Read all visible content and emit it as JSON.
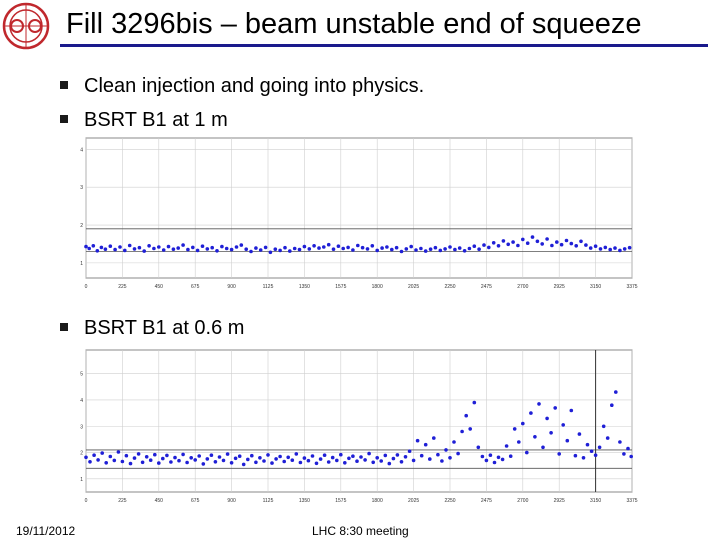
{
  "slide": {
    "title": "Fill 3296bis – beam unstable end of squeeze",
    "bullets": [
      "Clean injection and going into physics.",
      "BSRT B1 at 1 m",
      "BSRT B1 at 0.6 m"
    ],
    "footer_date": "19/11/2012",
    "footer_meeting": "LHC 8:30 meeting"
  },
  "colors": {
    "title_rule": "#1a1a8c",
    "points": "#1f1fd6",
    "logo": "#c0282d"
  },
  "chart_data": [
    {
      "type": "scatter",
      "series_color": "#1f1fd6",
      "xticks": [
        "0",
        "225",
        "450",
        "675",
        "900",
        "1125",
        "1350",
        "1575",
        "1800",
        "2025",
        "2250",
        "2475",
        "2700",
        "2925",
        "3150",
        "3375"
      ],
      "yticks": [
        "1",
        "2",
        "3",
        "4"
      ],
      "xlim": [
        0,
        3375
      ],
      "ylim": [
        0.6,
        4.3
      ],
      "hlines": [
        1.3,
        1.9
      ],
      "vlines": [],
      "points": [
        [
          0,
          1.43
        ],
        [
          20,
          1.38
        ],
        [
          45,
          1.45
        ],
        [
          70,
          1.32
        ],
        [
          95,
          1.41
        ],
        [
          120,
          1.36
        ],
        [
          150,
          1.44
        ],
        [
          180,
          1.35
        ],
        [
          210,
          1.42
        ],
        [
          240,
          1.33
        ],
        [
          270,
          1.46
        ],
        [
          300,
          1.37
        ],
        [
          330,
          1.4
        ],
        [
          360,
          1.31
        ],
        [
          390,
          1.45
        ],
        [
          420,
          1.38
        ],
        [
          450,
          1.42
        ],
        [
          480,
          1.34
        ],
        [
          510,
          1.43
        ],
        [
          540,
          1.36
        ],
        [
          570,
          1.39
        ],
        [
          600,
          1.47
        ],
        [
          630,
          1.35
        ],
        [
          660,
          1.41
        ],
        [
          690,
          1.33
        ],
        [
          720,
          1.44
        ],
        [
          750,
          1.37
        ],
        [
          780,
          1.4
        ],
        [
          810,
          1.32
        ],
        [
          840,
          1.43
        ],
        [
          870,
          1.38
        ],
        [
          900,
          1.35
        ],
        [
          930,
          1.42
        ],
        [
          960,
          1.47
        ],
        [
          990,
          1.36
        ],
        [
          1020,
          1.3
        ],
        [
          1050,
          1.39
        ],
        [
          1080,
          1.34
        ],
        [
          1110,
          1.41
        ],
        [
          1140,
          1.28
        ],
        [
          1170,
          1.36
        ],
        [
          1200,
          1.33
        ],
        [
          1230,
          1.4
        ],
        [
          1260,
          1.31
        ],
        [
          1290,
          1.38
        ],
        [
          1320,
          1.35
        ],
        [
          1350,
          1.43
        ],
        [
          1380,
          1.37
        ],
        [
          1410,
          1.45
        ],
        [
          1440,
          1.39
        ],
        [
          1470,
          1.42
        ],
        [
          1500,
          1.48
        ],
        [
          1530,
          1.36
        ],
        [
          1560,
          1.44
        ],
        [
          1590,
          1.38
        ],
        [
          1620,
          1.41
        ],
        [
          1650,
          1.34
        ],
        [
          1680,
          1.46
        ],
        [
          1710,
          1.4
        ],
        [
          1740,
          1.37
        ],
        [
          1770,
          1.45
        ],
        [
          1800,
          1.33
        ],
        [
          1830,
          1.39
        ],
        [
          1860,
          1.42
        ],
        [
          1890,
          1.35
        ],
        [
          1920,
          1.4
        ],
        [
          1950,
          1.3
        ],
        [
          1980,
          1.37
        ],
        [
          2010,
          1.43
        ],
        [
          2040,
          1.34
        ],
        [
          2070,
          1.38
        ],
        [
          2100,
          1.31
        ],
        [
          2130,
          1.36
        ],
        [
          2160,
          1.4
        ],
        [
          2190,
          1.33
        ],
        [
          2220,
          1.37
        ],
        [
          2250,
          1.42
        ],
        [
          2280,
          1.35
        ],
        [
          2310,
          1.39
        ],
        [
          2340,
          1.32
        ],
        [
          2370,
          1.38
        ],
        [
          2400,
          1.44
        ],
        [
          2430,
          1.36
        ],
        [
          2460,
          1.47
        ],
        [
          2490,
          1.41
        ],
        [
          2520,
          1.53
        ],
        [
          2550,
          1.45
        ],
        [
          2580,
          1.58
        ],
        [
          2610,
          1.49
        ],
        [
          2640,
          1.55
        ],
        [
          2670,
          1.46
        ],
        [
          2700,
          1.62
        ],
        [
          2730,
          1.52
        ],
        [
          2760,
          1.68
        ],
        [
          2790,
          1.57
        ],
        [
          2820,
          1.5
        ],
        [
          2850,
          1.63
        ],
        [
          2880,
          1.46
        ],
        [
          2910,
          1.55
        ],
        [
          2940,
          1.48
        ],
        [
          2970,
          1.59
        ],
        [
          3000,
          1.51
        ],
        [
          3030,
          1.45
        ],
        [
          3060,
          1.57
        ],
        [
          3090,
          1.47
        ],
        [
          3120,
          1.39
        ],
        [
          3150,
          1.44
        ],
        [
          3180,
          1.37
        ],
        [
          3210,
          1.41
        ],
        [
          3240,
          1.35
        ],
        [
          3270,
          1.39
        ],
        [
          3300,
          1.33
        ],
        [
          3330,
          1.37
        ],
        [
          3360,
          1.4
        ]
      ]
    },
    {
      "type": "scatter",
      "series_color": "#1f1fd6",
      "xticks": [
        "0",
        "225",
        "450",
        "675",
        "900",
        "1125",
        "1350",
        "1575",
        "1800",
        "2025",
        "2250",
        "2475",
        "2700",
        "2925",
        "3150",
        "3375"
      ],
      "yticks": [
        "1",
        "2",
        "3",
        "4",
        "5"
      ],
      "xlim": [
        0,
        3375
      ],
      "ylim": [
        0.5,
        5.9
      ],
      "hlines": [
        1.4,
        2.1
      ],
      "vlines": [
        3150
      ],
      "points": [
        [
          0,
          1.82
        ],
        [
          25,
          1.65
        ],
        [
          50,
          1.9
        ],
        [
          75,
          1.72
        ],
        [
          100,
          1.98
        ],
        [
          125,
          1.61
        ],
        [
          150,
          1.85
        ],
        [
          175,
          1.7
        ],
        [
          200,
          2.02
        ],
        [
          225,
          1.66
        ],
        [
          250,
          1.88
        ],
        [
          275,
          1.58
        ],
        [
          300,
          1.79
        ],
        [
          325,
          1.95
        ],
        [
          350,
          1.63
        ],
        [
          375,
          1.84
        ],
        [
          400,
          1.71
        ],
        [
          425,
          1.92
        ],
        [
          450,
          1.6
        ],
        [
          475,
          1.77
        ],
        [
          500,
          1.89
        ],
        [
          525,
          1.64
        ],
        [
          550,
          1.81
        ],
        [
          575,
          1.69
        ],
        [
          600,
          1.93
        ],
        [
          625,
          1.62
        ],
        [
          650,
          1.8
        ],
        [
          675,
          1.72
        ],
        [
          700,
          1.87
        ],
        [
          725,
          1.57
        ],
        [
          750,
          1.76
        ],
        [
          775,
          1.9
        ],
        [
          800,
          1.65
        ],
        [
          825,
          1.83
        ],
        [
          850,
          1.7
        ],
        [
          875,
          1.94
        ],
        [
          900,
          1.61
        ],
        [
          925,
          1.78
        ],
        [
          950,
          1.86
        ],
        [
          975,
          1.55
        ],
        [
          1000,
          1.74
        ],
        [
          1025,
          1.88
        ],
        [
          1050,
          1.63
        ],
        [
          1075,
          1.8
        ],
        [
          1100,
          1.68
        ],
        [
          1125,
          1.91
        ],
        [
          1150,
          1.6
        ],
        [
          1175,
          1.76
        ],
        [
          1200,
          1.85
        ],
        [
          1225,
          1.66
        ],
        [
          1250,
          1.82
        ],
        [
          1275,
          1.71
        ],
        [
          1300,
          1.95
        ],
        [
          1325,
          1.62
        ],
        [
          1350,
          1.79
        ],
        [
          1375,
          1.69
        ],
        [
          1400,
          1.87
        ],
        [
          1425,
          1.59
        ],
        [
          1450,
          1.75
        ],
        [
          1475,
          1.9
        ],
        [
          1500,
          1.64
        ],
        [
          1525,
          1.81
        ],
        [
          1550,
          1.7
        ],
        [
          1575,
          1.92
        ],
        [
          1600,
          1.61
        ],
        [
          1625,
          1.78
        ],
        [
          1650,
          1.86
        ],
        [
          1675,
          1.67
        ],
        [
          1700,
          1.83
        ],
        [
          1725,
          1.72
        ],
        [
          1750,
          1.96
        ],
        [
          1775,
          1.63
        ],
        [
          1800,
          1.8
        ],
        [
          1825,
          1.68
        ],
        [
          1850,
          1.89
        ],
        [
          1875,
          1.58
        ],
        [
          1900,
          1.77
        ],
        [
          1925,
          1.91
        ],
        [
          1950,
          1.65
        ],
        [
          1975,
          1.84
        ],
        [
          2000,
          2.05
        ],
        [
          2025,
          1.7
        ],
        [
          2050,
          2.45
        ],
        [
          2075,
          1.88
        ],
        [
          2100,
          2.3
        ],
        [
          2125,
          1.75
        ],
        [
          2150,
          2.55
        ],
        [
          2175,
          1.92
        ],
        [
          2200,
          1.68
        ],
        [
          2225,
          2.1
        ],
        [
          2250,
          1.8
        ],
        [
          2275,
          2.4
        ],
        [
          2300,
          1.96
        ],
        [
          2325,
          2.8
        ],
        [
          2350,
          3.4
        ],
        [
          2375,
          2.9
        ],
        [
          2400,
          3.9
        ],
        [
          2425,
          2.2
        ],
        [
          2450,
          1.85
        ],
        [
          2475,
          1.7
        ],
        [
          2500,
          1.9
        ],
        [
          2525,
          1.62
        ],
        [
          2550,
          1.82
        ],
        [
          2575,
          1.74
        ],
        [
          2600,
          2.25
        ],
        [
          2625,
          1.86
        ],
        [
          2650,
          2.9
        ],
        [
          2675,
          2.4
        ],
        [
          2700,
          3.1
        ],
        [
          2725,
          2.0
        ],
        [
          2750,
          3.5
        ],
        [
          2775,
          2.6
        ],
        [
          2800,
          3.85
        ],
        [
          2825,
          2.2
        ],
        [
          2850,
          3.3
        ],
        [
          2875,
          2.75
        ],
        [
          2900,
          3.7
        ],
        [
          2925,
          1.95
        ],
        [
          2950,
          3.05
        ],
        [
          2975,
          2.45
        ],
        [
          3000,
          3.6
        ],
        [
          3025,
          1.88
        ],
        [
          3050,
          2.7
        ],
        [
          3075,
          1.8
        ],
        [
          3100,
          2.3
        ],
        [
          3125,
          2.05
        ],
        [
          3150,
          1.9
        ],
        [
          3175,
          2.2
        ],
        [
          3200,
          3.0
        ],
        [
          3225,
          2.55
        ],
        [
          3250,
          3.8
        ],
        [
          3275,
          4.3
        ],
        [
          3300,
          2.4
        ],
        [
          3325,
          1.95
        ],
        [
          3350,
          2.15
        ],
        [
          3370,
          1.85
        ]
      ]
    }
  ]
}
